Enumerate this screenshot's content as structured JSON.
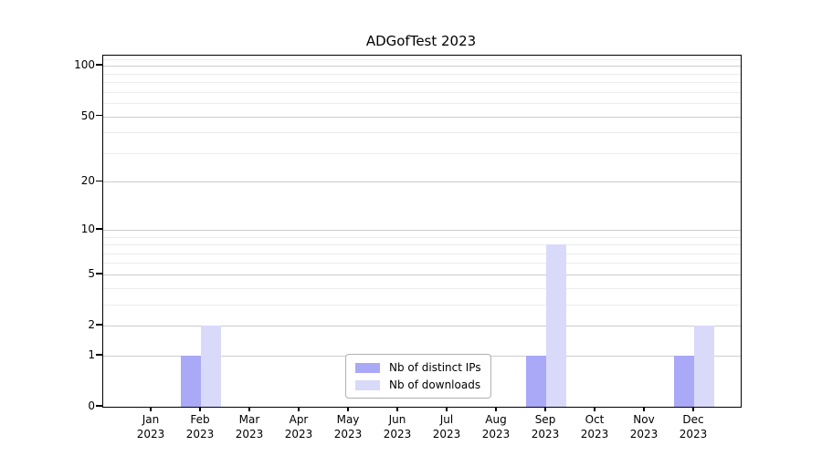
{
  "chart_data": {
    "type": "bar",
    "title": "ADGofTest 2023",
    "categories": [
      "Jan",
      "Feb",
      "Mar",
      "Apr",
      "May",
      "Jun",
      "Jul",
      "Aug",
      "Sep",
      "Oct",
      "Nov",
      "Dec"
    ],
    "category_year_label": "2023",
    "series": [
      {
        "name": "Nb of distinct IPs",
        "color": "#a9a9f7",
        "values": [
          0,
          1,
          0,
          0,
          0,
          0,
          0,
          0,
          1,
          0,
          0,
          1
        ]
      },
      {
        "name": "Nb of downloads",
        "color": "#d9d9fa",
        "values": [
          0,
          2,
          0,
          0,
          0,
          0,
          0,
          0,
          8,
          0,
          0,
          2
        ]
      }
    ],
    "yscale": "log1p",
    "ylim": [
      0,
      115
    ],
    "yticks": [
      0,
      1,
      2,
      5,
      10,
      20,
      50,
      100
    ],
    "minor_gridlines": [
      3,
      4,
      6,
      7,
      8,
      9,
      30,
      40,
      60,
      70,
      80,
      90,
      110
    ],
    "grid": true,
    "legend_position": "lower center",
    "colors": {
      "major_grid": "#cccccc",
      "minor_grid": "#ececec",
      "axis": "#000000",
      "background": "#ffffff"
    }
  }
}
